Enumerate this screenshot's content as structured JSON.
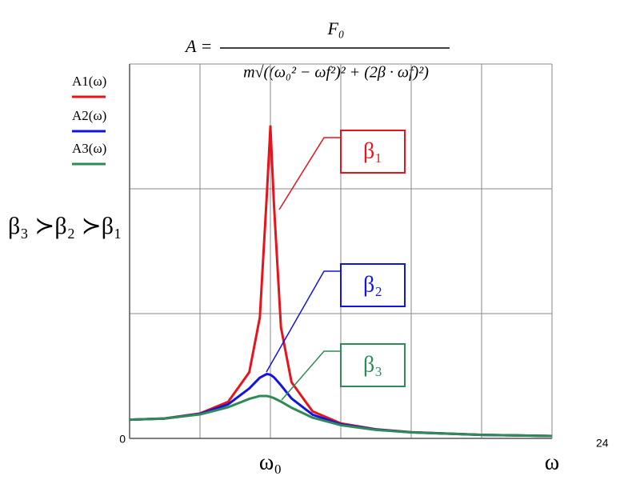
{
  "chart_data": {
    "type": "line",
    "formula": {
      "lhs": "A =",
      "numerator": "F₀",
      "denominator": "m√((ω₀² − ωf²)² + (2β · ωf)²)"
    },
    "note": "β₃ ≻β₂ ≻β₁",
    "page_number": "24",
    "x": [
      0,
      0.5,
      1,
      1.4,
      1.7,
      1.85,
      1.95,
      2,
      2.05,
      2.15,
      2.3,
      2.6,
      3,
      3.5,
      4,
      5,
      6
    ],
    "series": [
      {
        "name": "A1(ω)",
        "color": "#e8141c",
        "annotation": "β₁",
        "values": [
          0.15,
          0.16,
          0.2,
          0.293,
          0.53,
          0.97,
          1.96,
          2.5,
          1.88,
          0.89,
          0.45,
          0.216,
          0.12,
          0.073,
          0.05,
          0.029,
          0.019
        ]
      },
      {
        "name": "A2(ω)",
        "color": "#1414e0",
        "annotation": "β₂",
        "values": [
          0.15,
          0.159,
          0.196,
          0.273,
          0.4,
          0.487,
          0.516,
          0.51,
          0.49,
          0.426,
          0.32,
          0.19,
          0.113,
          0.071,
          0.049,
          0.028,
          0.019
        ]
      },
      {
        "name": "A3(ω)",
        "color": "#2e8b57",
        "annotation": "β₃",
        "values": [
          0.15,
          0.159,
          0.192,
          0.25,
          0.317,
          0.34,
          0.34,
          0.333,
          0.323,
          0.295,
          0.246,
          0.166,
          0.106,
          0.068,
          0.048,
          0.028,
          0.019
        ]
      }
    ],
    "xlim": [
      0,
      6
    ],
    "xticks": [
      {
        "value": 0,
        "label": null
      },
      {
        "value": 1,
        "label": null
      },
      {
        "value": 2,
        "label": "ω₀"
      },
      {
        "value": 3,
        "label": null
      },
      {
        "value": 4,
        "label": null
      },
      {
        "value": 5,
        "label": null
      },
      {
        "value": 6,
        "label": "ω"
      }
    ],
    "ylim": [
      0,
      3
    ],
    "yticks": [
      0,
      {
        "value": 1,
        "label": null
      },
      {
        "value": 2,
        "label": null
      },
      {
        "value": 3,
        "label": null
      }
    ],
    "grid": true
  }
}
